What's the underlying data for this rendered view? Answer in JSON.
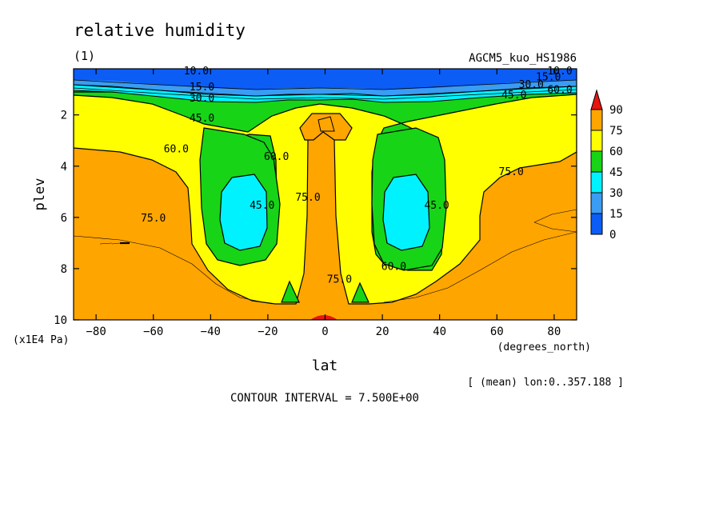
{
  "chart_data": {
    "type": "contour",
    "title": "relative humidity",
    "panel_label": "(1)",
    "run_name": "AGCM5_kuo_HS1986",
    "xlabel": "lat",
    "xunits": "(degrees_north)",
    "ylabel": "plev",
    "yunits": "(x1E4 Pa)",
    "x_ticks": [
      -80,
      -60,
      -40,
      -20,
      0,
      20,
      40,
      60,
      80
    ],
    "y_ticks": [
      2,
      4,
      6,
      8,
      10
    ],
    "xlim": [
      -87.86,
      87.86
    ],
    "ylim": [
      0.2,
      10
    ],
    "y_inverted": true,
    "contour_interval_text": "CONTOUR INTERVAL = 7.500E+00",
    "averaging_note": "[ (mean) lon:0..357.188 ]",
    "contour_labels": [
      {
        "text": "10.0",
        "lat": -45,
        "plev": 0.27
      },
      {
        "text": "15.0",
        "lat": -43,
        "plev": 0.88
      },
      {
        "text": "30.0",
        "lat": -43,
        "plev": 1.33
      },
      {
        "text": "45.0",
        "lat": -43,
        "plev": 2.1
      },
      {
        "text": "60.0",
        "lat": -52,
        "plev": 3.3
      },
      {
        "text": "60.0",
        "lat": -17,
        "plev": 3.6
      },
      {
        "text": "45.0",
        "lat": -22,
        "plev": 5.5
      },
      {
        "text": "75.0",
        "lat": -60,
        "plev": 6.0
      },
      {
        "text": "75.0",
        "lat": -6,
        "plev": 5.2
      },
      {
        "text": "75.0",
        "lat": 5,
        "plev": 8.4
      },
      {
        "text": "45.0",
        "lat": 39,
        "plev": 5.5
      },
      {
        "text": "60.0",
        "lat": 24,
        "plev": 7.9
      },
      {
        "text": "75.0",
        "lat": 65,
        "plev": 4.2
      },
      {
        "text": "60.0",
        "lat": 82,
        "plev": 1.0
      },
      {
        "text": "45.0",
        "lat": 66,
        "plev": 1.2
      },
      {
        "text": "30.0",
        "lat": 72,
        "plev": 0.8
      },
      {
        "text": "15.0",
        "lat": 78,
        "plev": 0.5
      },
      {
        "text": "10.0",
        "lat": 82,
        "plev": 0.27
      }
    ],
    "colorbar": {
      "levels": [
        "0",
        "15",
        "30",
        "45",
        "60",
        "75",
        "90"
      ],
      "colors": [
        "#0b5df5",
        "#3a9cf2",
        "#00f2ff",
        "#17d417",
        "#ffff00",
        "#ffa500",
        "#e5170f"
      ]
    }
  }
}
